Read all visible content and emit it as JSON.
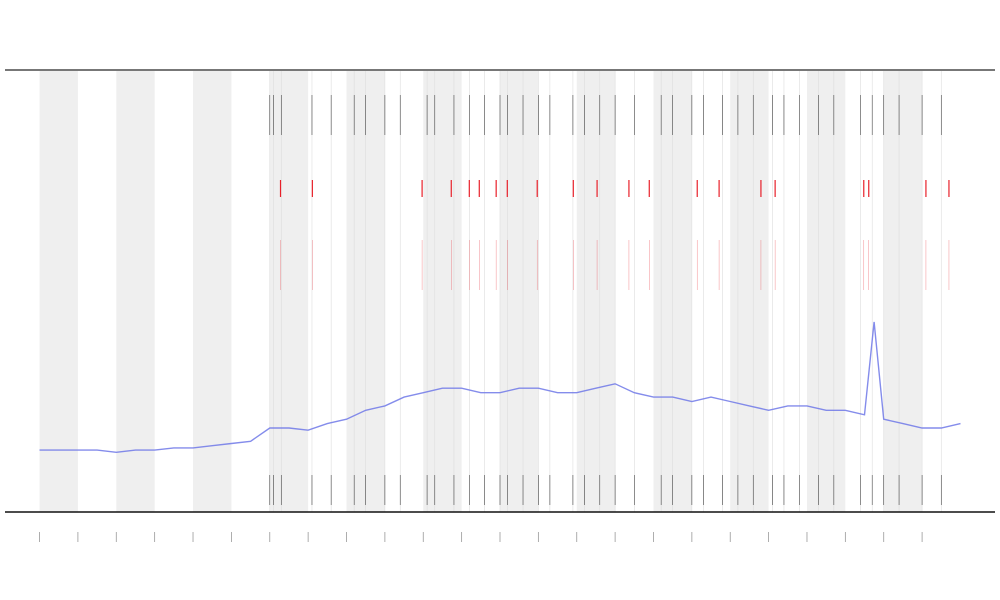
{
  "chart_data": {
    "type": "line",
    "xlim": [
      -0.9,
      24.9
    ],
    "ylim": [
      0,
      100
    ],
    "xticks": [
      0,
      1,
      2,
      3,
      4,
      5,
      6,
      7,
      8,
      9,
      10,
      11,
      12,
      13,
      14,
      15,
      16,
      17,
      18,
      19,
      20,
      21,
      22,
      23
    ],
    "shaded_bands": [
      [
        0,
        1
      ],
      [
        2,
        3
      ],
      [
        4,
        5
      ],
      [
        6,
        7
      ],
      [
        8,
        9
      ],
      [
        10,
        11
      ],
      [
        12,
        13
      ],
      [
        14,
        15
      ],
      [
        16,
        17
      ],
      [
        18,
        19
      ],
      [
        20,
        21
      ],
      [
        22,
        23
      ]
    ],
    "band_color": "#efefef",
    "series": [
      {
        "color": "#6f78e8",
        "x": [
          0,
          0.5,
          1,
          1.5,
          2,
          2.5,
          3,
          3.5,
          4,
          4.5,
          5,
          5.5,
          6,
          6.5,
          7,
          7.5,
          8,
          8.5,
          9,
          9.5,
          10,
          10.5,
          11,
          11.5,
          12,
          12.5,
          13,
          13.5,
          14,
          14.5,
          15,
          15.5,
          16,
          16.5,
          17,
          17.5,
          18,
          18.5,
          19,
          19.5,
          20,
          20.5,
          21,
          21.5,
          21.75,
          22,
          22.5,
          23,
          23.5,
          24
        ],
        "values": [
          14,
          14,
          14,
          14,
          13.5,
          14,
          14,
          14.5,
          14.5,
          15,
          15.5,
          16,
          19,
          19,
          18.5,
          20,
          21,
          23,
          24,
          26,
          27,
          28,
          28,
          27,
          27,
          28,
          28,
          27,
          27,
          28,
          29,
          27,
          26,
          26,
          25,
          26,
          25,
          24,
          23,
          24,
          24,
          23,
          23,
          22,
          43,
          21,
          20,
          19,
          19,
          20
        ]
      }
    ],
    "events": {
      "color": "#444444",
      "x": [
        6.0,
        6.1,
        6.3,
        7.1,
        7.6,
        8.2,
        8.5,
        9.0,
        9.4,
        10.1,
        10.3,
        10.8,
        11.2,
        11.6,
        12.0,
        12.2,
        12.6,
        13.0,
        13.3,
        13.9,
        14.2,
        14.6,
        15.0,
        15.5,
        16.2,
        16.5,
        17.0,
        17.3,
        17.8,
        18.2,
        18.6,
        19.1,
        19.4,
        19.8,
        20.3,
        20.7,
        21.4,
        21.7,
        22.0,
        22.4,
        23.0,
        23.5
      ]
    },
    "alerts": {
      "color": "#e8202a",
      "x": [
        6.28,
        7.11,
        9.97,
        10.73,
        11.2,
        11.46,
        11.9,
        12.19,
        12.97,
        13.91,
        14.53,
        15.36,
        15.89,
        17.14,
        17.71,
        18.8,
        19.17,
        21.48,
        21.61,
        23.1,
        23.7
      ]
    }
  }
}
